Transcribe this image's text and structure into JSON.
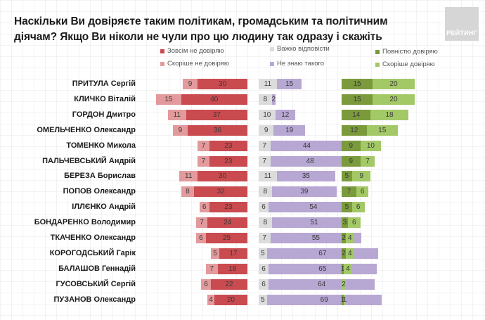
{
  "chart_data": {
    "type": "bar",
    "title": "Наскільки Ви довіряєте таким політикам, громадським та політичним діячам? Якщо Ви ніколи не чули про цю людину так одразу і скажіть",
    "orientation": "horizontal",
    "stacked": true,
    "categories": [
      "ПРИТУЛА Сергій",
      "КЛИЧКО Віталій",
      "ГОРДОН Дмитро",
      "ОМЕЛЬЧЕНКО Олександр",
      "ТОМЕНКО Микола",
      "ПАЛЬЧЕВСЬКИЙ Андрій",
      "БЕРЕЗА Борислав",
      "ПОПОВ Олександр",
      "ІЛЛЄНКО Андрій",
      "БОНДАРЕНКО Володимир",
      "ТКАЧЕНКО Олександр",
      "КОРОГОДСЬКИЙ Гарік",
      "БАЛАШОВ Геннадій",
      "ГУСОВСЬКИЙ Сергій",
      "ПУЗАНОВ Олександр"
    ],
    "series": [
      {
        "name": "Зовсім не довіряю",
        "color": "#c94a4f",
        "group": "distrust",
        "values": [
          30,
          40,
          37,
          36,
          23,
          23,
          30,
          32,
          23,
          24,
          25,
          17,
          18,
          22,
          20
        ]
      },
      {
        "name": "Скоріше не довіряю",
        "color": "#e39a9c",
        "group": "distrust",
        "values": [
          9,
          15,
          11,
          9,
          7,
          7,
          11,
          8,
          6,
          7,
          6,
          5,
          7,
          6,
          4
        ]
      },
      {
        "name": "Важко відповісти",
        "color": "#dcdcdc",
        "group": "neutral",
        "values": [
          11,
          8,
          10,
          9,
          7,
          7,
          11,
          8,
          6,
          8,
          7,
          5,
          6,
          6,
          5
        ]
      },
      {
        "name": "Не знаю такого",
        "color": "#b7a7d3",
        "group": "neutral",
        "values": [
          15,
          2,
          12,
          19,
          44,
          48,
          35,
          39,
          54,
          51,
          55,
          67,
          65,
          64,
          69
        ]
      },
      {
        "name": "Повністю довіряю",
        "color": "#7a9a3c",
        "group": "trust",
        "values": [
          15,
          15,
          14,
          12,
          9,
          9,
          5,
          7,
          5,
          3,
          2,
          2,
          1,
          0,
          1
        ]
      },
      {
        "name": "Скоріше довіряю",
        "color": "#a3c866",
        "group": "trust",
        "values": [
          20,
          20,
          18,
          15,
          10,
          7,
          9,
          6,
          6,
          6,
          4,
          4,
          4,
          2,
          1
        ]
      }
    ],
    "unit": "%",
    "xlabel": "",
    "ylabel": "",
    "grid": false,
    "legend_position": "top"
  },
  "legend": [
    {
      "label": "Зовсім не довіряю",
      "color": "#c94a4f"
    },
    {
      "label": "Скоріше не довіряю",
      "color": "#e39a9c"
    },
    {
      "label": "Важко відповісти",
      "color": "#dcdcdc"
    },
    {
      "label": "Не знаю такого",
      "color": "#b7a7d3"
    },
    {
      "label": "Повністю довіряю",
      "color": "#7a9a3c"
    },
    {
      "label": "Скоріше довіряю",
      "color": "#a3c866"
    }
  ],
  "logo": {
    "text": "РЕЙТИНГ"
  }
}
